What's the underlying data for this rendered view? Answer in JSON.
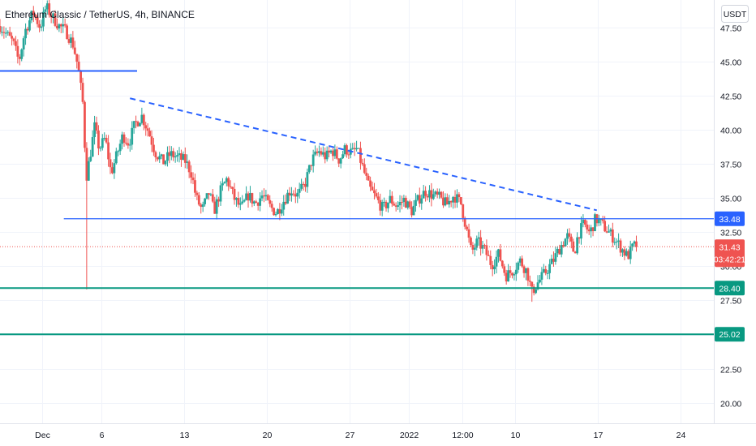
{
  "header": {
    "symbol_title": "Ethereum Classic / TetherUS, 4h, BINANCE"
  },
  "currency_button": "USDT",
  "colors": {
    "up": "#26a69a",
    "down": "#ef5350",
    "trendline": "#2962ff",
    "support_green": "#089981",
    "price_line": "#ef5350",
    "grid": "#f0f3fa",
    "axis_text": "#131722"
  },
  "chart_data": {
    "type": "candlestick",
    "title": "Ethereum Classic / TetherUS, 4h, BINANCE",
    "price_axis": {
      "range": [
        18.5,
        49.5
      ],
      "ticks": [
        "47.50",
        "45.00",
        "42.50",
        "40.00",
        "37.50",
        "35.00",
        "32.50",
        "30.00",
        "27.50",
        "25.00",
        "22.50",
        "20.00"
      ]
    },
    "time_axis": {
      "range_days_from_nov_28": [
        -0.6,
        59.8
      ],
      "ticks": [
        {
          "label": "Dec",
          "day": 3
        },
        {
          "label": "6",
          "day": 8
        },
        {
          "label": "13",
          "day": 15
        },
        {
          "label": "20",
          "day": 22
        },
        {
          "label": "27",
          "day": 29
        },
        {
          "label": "2022",
          "day": 34
        },
        {
          "label": "12:00",
          "day": 38.5
        },
        {
          "label": "10",
          "day": 43
        },
        {
          "label": "17",
          "day": 50
        },
        {
          "label": "24",
          "day": 57
        }
      ]
    },
    "price_path": [
      [
        -0.6,
        47.6
      ],
      [
        0.5,
        46.4
      ],
      [
        1.0,
        45.0
      ],
      [
        1.5,
        47.2
      ],
      [
        2.2,
        48.6
      ],
      [
        2.8,
        47.5
      ],
      [
        3.3,
        49.0
      ],
      [
        3.8,
        48.3
      ],
      [
        4.4,
        47.6
      ],
      [
        5.0,
        47.2
      ],
      [
        5.6,
        46.2
      ],
      [
        6.0,
        44.6
      ],
      [
        6.4,
        42.0
      ],
      [
        6.7,
        36.5
      ],
      [
        7.0,
        38.0
      ],
      [
        7.4,
        40.2
      ],
      [
        7.8,
        38.6
      ],
      [
        8.3,
        39.4
      ],
      [
        8.8,
        36.8
      ],
      [
        9.3,
        38.2
      ],
      [
        9.8,
        39.6
      ],
      [
        10.3,
        39.0
      ],
      [
        10.8,
        40.4
      ],
      [
        11.4,
        41.0
      ],
      [
        12.0,
        39.8
      ],
      [
        12.5,
        38.4
      ],
      [
        13.2,
        37.6
      ],
      [
        13.8,
        38.2
      ],
      [
        14.4,
        38.0
      ],
      [
        15.1,
        37.7
      ],
      [
        15.6,
        36.8
      ],
      [
        16.0,
        35.0
      ],
      [
        16.5,
        34.1
      ],
      [
        17.1,
        35.4
      ],
      [
        17.5,
        34.0
      ],
      [
        18.1,
        35.6
      ],
      [
        18.6,
        36.4
      ],
      [
        19.2,
        35.0
      ],
      [
        19.8,
        34.2
      ],
      [
        20.4,
        35.2
      ],
      [
        21.0,
        34.6
      ],
      [
        21.6,
        35.2
      ],
      [
        22.2,
        34.4
      ],
      [
        22.8,
        33.9
      ],
      [
        23.4,
        34.8
      ],
      [
        24.0,
        35.6
      ],
      [
        24.6,
        35.2
      ],
      [
        25.2,
        36.0
      ],
      [
        25.8,
        37.8
      ],
      [
        26.4,
        38.4
      ],
      [
        27.0,
        38.0
      ],
      [
        27.5,
        38.5
      ],
      [
        28.1,
        37.8
      ],
      [
        28.6,
        38.6
      ],
      [
        29.2,
        38.3
      ],
      [
        29.6,
        38.6
      ],
      [
        30.1,
        37.2
      ],
      [
        30.6,
        35.8
      ],
      [
        31.2,
        35.0
      ],
      [
        31.8,
        34.2
      ],
      [
        32.4,
        34.9
      ],
      [
        33.0,
        34.4
      ],
      [
        33.6,
        34.9
      ],
      [
        34.2,
        34.0
      ],
      [
        34.8,
        34.9
      ],
      [
        35.4,
        35.5
      ],
      [
        36.0,
        35.2
      ],
      [
        36.6,
        35.0
      ],
      [
        37.2,
        34.5
      ],
      [
        37.8,
        35.2
      ],
      [
        38.4,
        34.6
      ],
      [
        38.8,
        33.0
      ],
      [
        39.3,
        31.0
      ],
      [
        39.8,
        31.8
      ],
      [
        40.4,
        31.2
      ],
      [
        41.0,
        30.1
      ],
      [
        41.6,
        30.9
      ],
      [
        42.2,
        29.3
      ],
      [
        42.8,
        29.7
      ],
      [
        43.4,
        30.4
      ],
      [
        44.0,
        29.6
      ],
      [
        44.4,
        28.1
      ],
      [
        44.9,
        28.8
      ],
      [
        45.5,
        29.5
      ],
      [
        46.2,
        30.4
      ],
      [
        46.8,
        31.4
      ],
      [
        47.4,
        32.2
      ],
      [
        48.0,
        31.0
      ],
      [
        48.3,
        32.3
      ],
      [
        48.8,
        33.1
      ],
      [
        49.3,
        32.4
      ],
      [
        49.8,
        33.5
      ],
      [
        50.3,
        33.1
      ],
      [
        50.8,
        32.6
      ],
      [
        51.4,
        32.0
      ],
      [
        52.0,
        31.3
      ],
      [
        52.5,
        30.7
      ],
      [
        53.0,
        31.5
      ],
      [
        53.3,
        31.43
      ]
    ],
    "annotations": {
      "resistance_left": {
        "price": 44.3,
        "day_range": [
          -0.6,
          11.0
        ]
      },
      "resistance_line": {
        "price": 33.48,
        "day_range": [
          4.8,
          59.8
        ],
        "label": "33.48"
      },
      "support_1": {
        "price": 28.4,
        "label": "28.40"
      },
      "support_2": {
        "price": 25.02,
        "label": "25.02"
      },
      "descending_trendline": {
        "from": [
          10.4,
          42.3
        ],
        "to": [
          49.9,
          34.1
        ]
      },
      "last_price": {
        "price": 31.43,
        "label": "31.43",
        "countdown": "03:42:21"
      }
    }
  }
}
